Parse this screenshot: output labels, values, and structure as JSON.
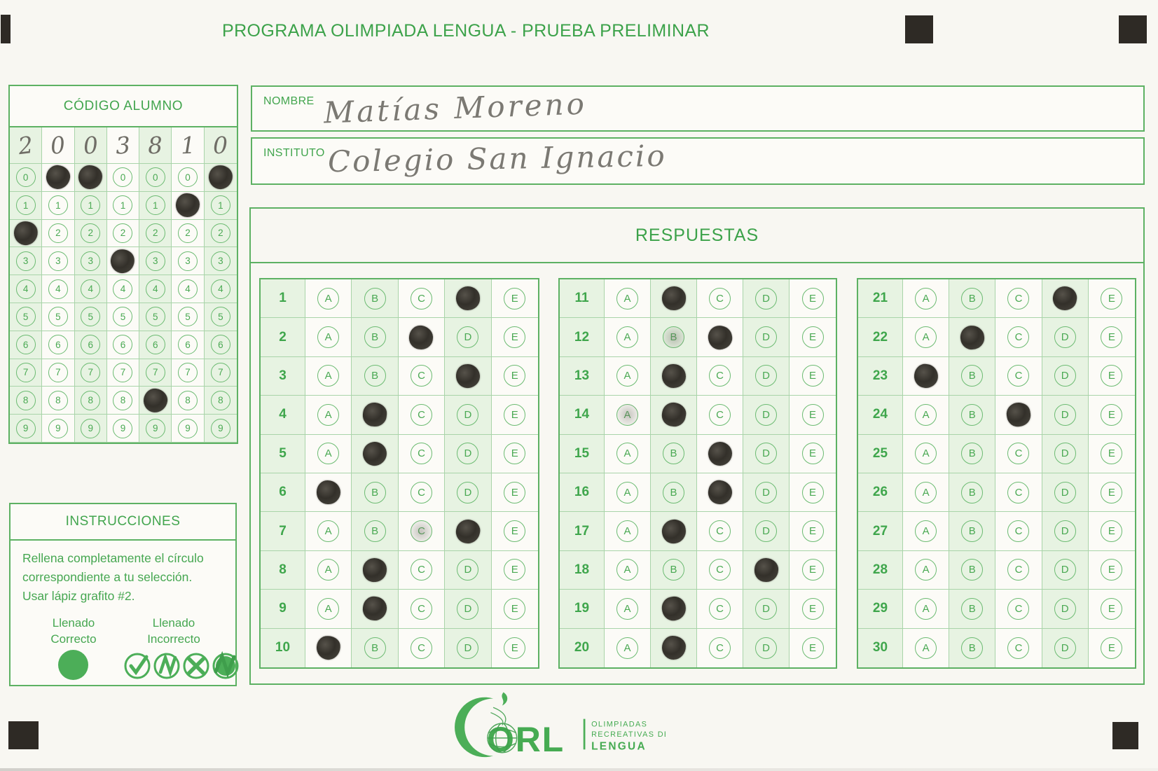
{
  "page": {
    "title": "PROGRAMA OLIMPIADA LENGUA - PRUEBA PRELIMINAR"
  },
  "colors": {
    "green": "#3fa64c",
    "green_light_cell": "#e7f3e2",
    "pencil_dark": "#38352e",
    "pencil_gray": "#78766f",
    "paper": "#f8f7f2"
  },
  "codigo": {
    "title": "CÓDIGO ALUMNO",
    "columns": 7,
    "digit_rows": [
      "0",
      "1",
      "2",
      "3",
      "4",
      "5",
      "6",
      "7",
      "8",
      "9"
    ],
    "written_digits": [
      "2",
      "0",
      "0",
      "3",
      "8",
      "1",
      "0"
    ],
    "marked_digits": [
      2,
      0,
      0,
      3,
      8,
      1,
      0
    ]
  },
  "fields": {
    "nombre_label": "NOMBRE",
    "nombre_value": "Matías Moreno",
    "instituto_label": "INSTITUTO",
    "instituto_value": "Colegio San Ignacio"
  },
  "respuestas": {
    "title": "RESPUESTAS",
    "options": [
      "A",
      "B",
      "C",
      "D",
      "E"
    ],
    "questions": [
      {
        "n": 1,
        "marked": "D"
      },
      {
        "n": 2,
        "marked": "C"
      },
      {
        "n": 3,
        "marked": "D"
      },
      {
        "n": 4,
        "marked": "B"
      },
      {
        "n": 5,
        "marked": "B"
      },
      {
        "n": 6,
        "marked": "A"
      },
      {
        "n": 7,
        "marked": "D",
        "faint": "C"
      },
      {
        "n": 8,
        "marked": "B"
      },
      {
        "n": 9,
        "marked": "B"
      },
      {
        "n": 10,
        "marked": "A"
      },
      {
        "n": 11,
        "marked": "B"
      },
      {
        "n": 12,
        "marked": "C",
        "faint": "B"
      },
      {
        "n": 13,
        "marked": "B"
      },
      {
        "n": 14,
        "marked": "B",
        "faint": "A"
      },
      {
        "n": 15,
        "marked": "C"
      },
      {
        "n": 16,
        "marked": "C"
      },
      {
        "n": 17,
        "marked": "B"
      },
      {
        "n": 18,
        "marked": "D"
      },
      {
        "n": 19,
        "marked": "B"
      },
      {
        "n": 20,
        "marked": "B"
      },
      {
        "n": 21,
        "marked": "D"
      },
      {
        "n": 22,
        "marked": "B"
      },
      {
        "n": 23,
        "marked": "A"
      },
      {
        "n": 24,
        "marked": "C"
      },
      {
        "n": 25,
        "marked": null
      },
      {
        "n": 26,
        "marked": null
      },
      {
        "n": 27,
        "marked": null
      },
      {
        "n": 28,
        "marked": null
      },
      {
        "n": 29,
        "marked": null
      },
      {
        "n": 30,
        "marked": null
      }
    ]
  },
  "instrucciones": {
    "title": "INSTRUCCIONES",
    "body": "Rellena completamente el círculo correspondiente a tu selección. Usar lápiz grafito #2.",
    "correct_line1": "Llenado",
    "correct_line2": "Correcto",
    "incorrect_line1": "Llenado",
    "incorrect_line2": "Incorrecto"
  },
  "logo": {
    "acronym": "ORL",
    "line1": "OLIMPIADAS",
    "line2": "RECREATIVAS DE",
    "line3": "LENGUA"
  }
}
